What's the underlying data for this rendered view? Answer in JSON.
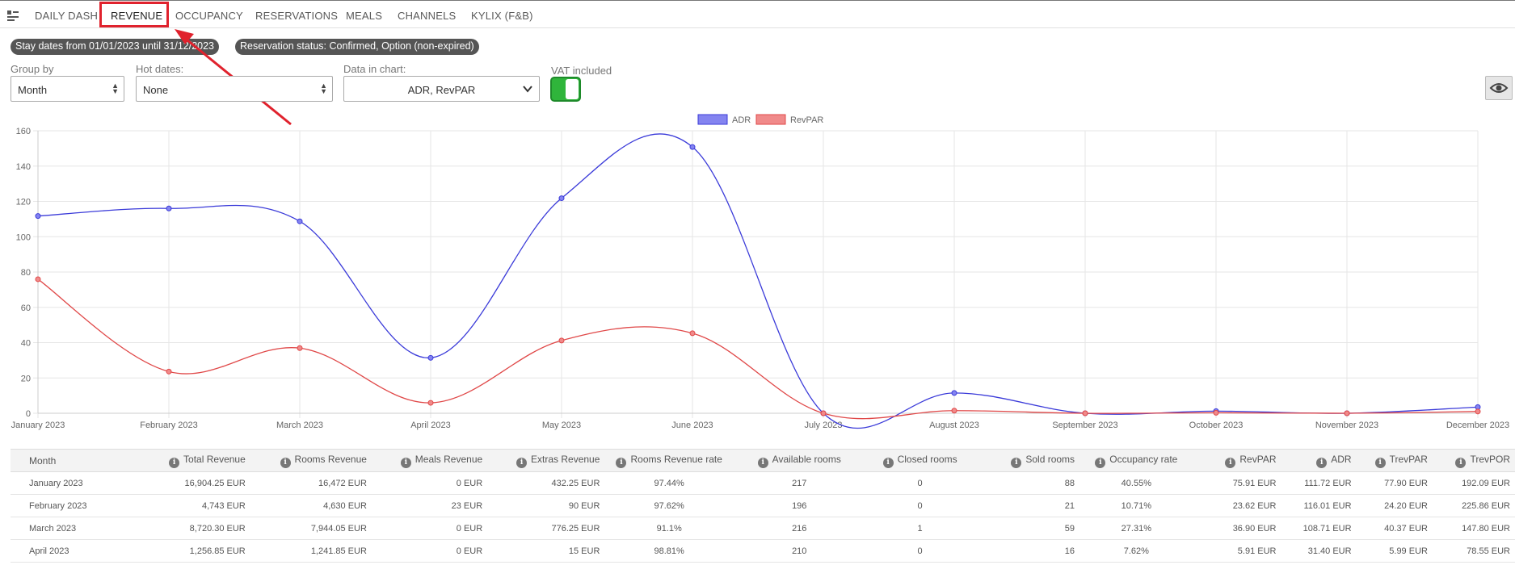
{
  "nav": {
    "tabs": [
      "DAILY DASH",
      "REVENUE",
      "OCCUPANCY",
      "RESERVATIONS",
      "MEALS",
      "CHANNELS",
      "KYLIX (F&B)"
    ],
    "active": "REVENUE",
    "highlight_color": "#e0222d"
  },
  "filters": {
    "stay_dates": "Stay dates from 01/01/2023 until 31/12/2023",
    "reservation_status": "Reservation status: Confirmed, Option (non-expired)"
  },
  "controls": {
    "group_by_label": "Group by",
    "group_by_value": "Month",
    "hot_dates_label": "Hot dates:",
    "hot_dates_value": "None",
    "data_in_chart_label": "Data in chart:",
    "data_in_chart_value": "ADR, RevPAR",
    "vat_label": "VAT included",
    "vat_on": true
  },
  "chart_data": {
    "type": "line",
    "categories": [
      "January 2023",
      "February 2023",
      "March 2023",
      "April 2023",
      "May 2023",
      "June 2023",
      "July 2023",
      "August 2023",
      "September 2023",
      "October 2023",
      "November 2023",
      "December 2023"
    ],
    "series": [
      {
        "name": "ADR",
        "color": "#3b3bd9",
        "fill": "#8484f0",
        "values": [
          111.72,
          116.01,
          108.71,
          31.4,
          121.8,
          150.8,
          0,
          11.5,
          0,
          1.2,
          0,
          3.5
        ]
      },
      {
        "name": "RevPAR",
        "color": "#e04848",
        "fill": "#f08a8a",
        "values": [
          75.91,
          23.62,
          36.9,
          5.91,
          41.2,
          45.3,
          0,
          1.5,
          0,
          0.3,
          0,
          1.0
        ]
      }
    ],
    "yticks": [
      0,
      20,
      40,
      60,
      80,
      100,
      120,
      140,
      160
    ],
    "ylim": [
      0,
      160
    ],
    "grid": true,
    "legend": "top"
  },
  "table": {
    "columns": [
      "Month",
      "Total Revenue",
      "Rooms Revenue",
      "Meals Revenue",
      "Extras Revenue",
      "Rooms Revenue rate",
      "Available rooms",
      "Closed rooms",
      "Sold rooms",
      "Occupancy rate",
      "RevPAR",
      "ADR",
      "TrevPAR",
      "TrevPOR"
    ],
    "rows": [
      [
        "January 2023",
        "16,904.25 EUR",
        "16,472 EUR",
        "0 EUR",
        "432.25 EUR",
        "97.44%",
        "217",
        "0",
        "88",
        "40.55%",
        "75.91 EUR",
        "111.72 EUR",
        "77.90 EUR",
        "192.09 EUR"
      ],
      [
        "February 2023",
        "4,743 EUR",
        "4,630 EUR",
        "23 EUR",
        "90 EUR",
        "97.62%",
        "196",
        "0",
        "21",
        "10.71%",
        "23.62 EUR",
        "116.01 EUR",
        "24.20 EUR",
        "225.86 EUR"
      ],
      [
        "March 2023",
        "8,720.30 EUR",
        "7,944.05 EUR",
        "0 EUR",
        "776.25 EUR",
        "91.1%",
        "216",
        "1",
        "59",
        "27.31%",
        "36.90 EUR",
        "108.71 EUR",
        "40.37 EUR",
        "147.80 EUR"
      ],
      [
        "April 2023",
        "1,256.85 EUR",
        "1,241.85 EUR",
        "0 EUR",
        "15 EUR",
        "98.81%",
        "210",
        "0",
        "16",
        "7.62%",
        "5.91 EUR",
        "31.40 EUR",
        "5.99 EUR",
        "78.55 EUR"
      ]
    ]
  }
}
